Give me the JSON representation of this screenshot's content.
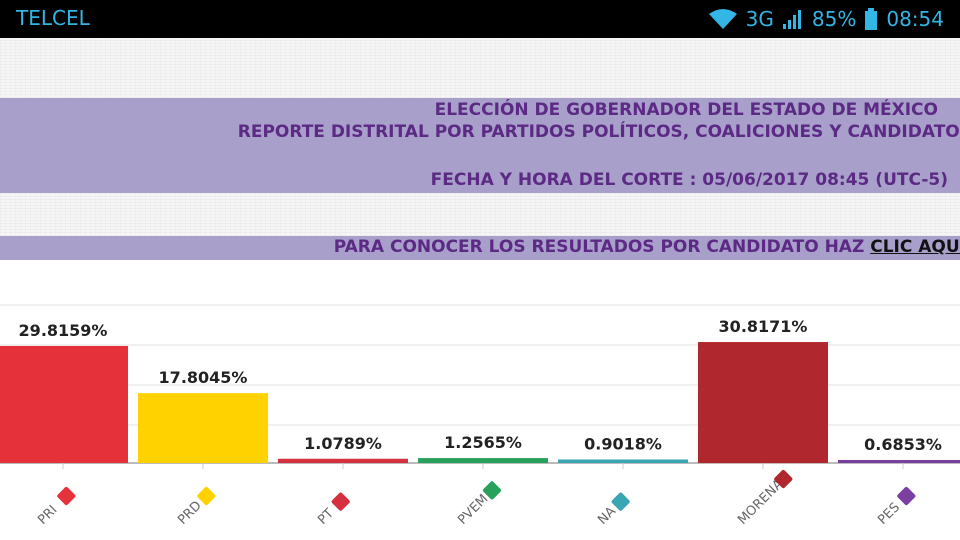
{
  "statusbar": {
    "carrier": "TELCEL",
    "network": "3G",
    "battery": "85%",
    "time": "08:54",
    "icons": [
      "wifi-icon",
      "signal-icon",
      "battery-icon"
    ]
  },
  "header": {
    "title_line1": "ELECCIÓN DE GOBERNADOR DEL ESTADO DE MÉXICO",
    "title_line2": "REPORTE DISTRITAL POR PARTIDOS POLÍTICOS, COALICIONES Y CANDIDATOS",
    "cut_datetime": "FECHA Y HORA DEL CORTE : 05/06/2017 08:45 (UTC-5)"
  },
  "results_link": {
    "prefix": "PARA CONOCER LOS RESULTADOS POR CANDIDATO HAZ ",
    "link_text": "CLIC AQUÍ"
  },
  "colors": {
    "banner": "#a89fcb",
    "banner_text": "#5c2a84"
  },
  "chart_data": {
    "type": "bar",
    "categories": [
      "PRI",
      "PRD",
      "PT",
      "PVEM",
      "NA",
      "MORENA",
      "PES"
    ],
    "values": [
      29.8159,
      17.8045,
      1.0789,
      1.2565,
      0.9018,
      30.8171,
      0.6853
    ],
    "value_labels": [
      "29.8159%",
      "17.8045%",
      "1.0789%",
      "1.2565%",
      "0.9018%",
      "30.8171%",
      "0.6853%"
    ],
    "colors": [
      "#e5313a",
      "#ffd200",
      "#d4303f",
      "#28a15c",
      "#3aa6b4",
      "#b0272e",
      "#7b3fa0"
    ],
    "ylim": [
      0,
      40
    ],
    "grid": true,
    "legend": "none"
  }
}
